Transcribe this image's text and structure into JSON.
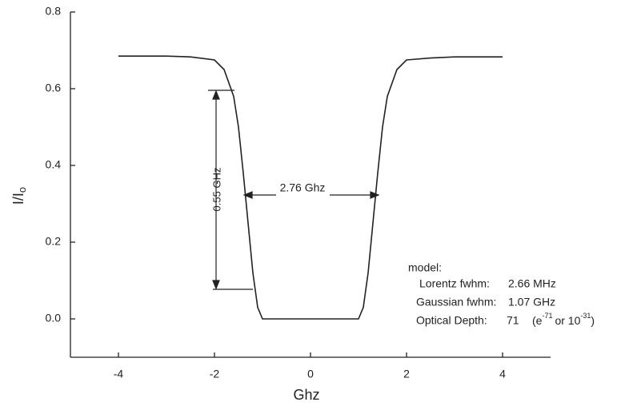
{
  "chart_data": {
    "type": "line",
    "x_label": "Ghz",
    "y_label": {
      "main": "I/I",
      "sub": "o"
    },
    "x": [
      -4,
      -3,
      -2.5,
      -2,
      -1.8,
      -1.6,
      -1.5,
      -1.4,
      -1.3,
      -1.2,
      -1.1,
      -1.0,
      0,
      1.0,
      1.1,
      1.2,
      1.3,
      1.4,
      1.5,
      1.6,
      1.8,
      2,
      2.5,
      3,
      4
    ],
    "series": [
      {
        "color": "#222222",
        "values": [
          0.685,
          0.685,
          0.683,
          0.675,
          0.65,
          0.58,
          0.5,
          0.38,
          0.25,
          0.12,
          0.03,
          0.0,
          0.0,
          0.0,
          0.03,
          0.12,
          0.25,
          0.38,
          0.5,
          0.58,
          0.65,
          0.675,
          0.68,
          0.683,
          0.683
        ]
      }
    ],
    "xlim": [
      -5,
      5
    ],
    "ylim": [
      -0.1,
      0.8
    ],
    "xticks": [
      -4,
      -2,
      0,
      2,
      4
    ],
    "yticks": [
      {
        "value": 0,
        "label": "0.0"
      },
      0.2,
      0.4,
      0.6,
      0.8
    ],
    "annotations": {
      "height": "0.55 GHz",
      "width": "2.76 Ghz",
      "model": {
        "title": "model:",
        "lorentz_label": "Lorentz fwhm:",
        "lorentz_value": "2.66 MHz",
        "gaussian_label": "Gaussian fwhm:",
        "gaussian_value": "1.07 GHz",
        "depth_label": "Optical Depth:",
        "depth_value": "71",
        "depth_open": "(e",
        "depth_exp1": "-71",
        "depth_mid": "or 10",
        "depth_exp2": "-31",
        "depth_close": ")"
      }
    }
  }
}
